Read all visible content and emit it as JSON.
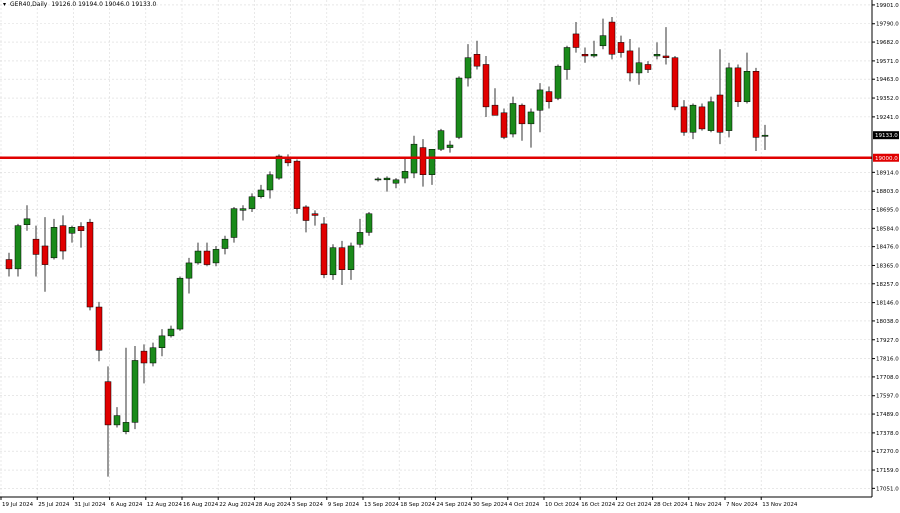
{
  "header": {
    "symbol_timeframe": "GER40,Daily",
    "ohlc": "19126.0 19194.0 19046.0 19133.0"
  },
  "colors": {
    "background": "#ffffff",
    "grid": "#d9d9d9",
    "bull": "#1a8a1a",
    "bear": "#e00000",
    "wick": "#000000",
    "level_line": "#e00000",
    "price_label_bg": "#000000"
  },
  "chart_data": {
    "type": "candlestick",
    "ylim": [
      17000,
      19930
    ],
    "grid": true,
    "y_ticks": [
      "19901.0",
      "19790.0",
      "19682.0",
      "19571.0",
      "19463.0",
      "19352.0",
      "19241.0",
      "18914.0",
      "18803.0",
      "18695.0",
      "18584.0",
      "18476.0",
      "18365.0",
      "18257.0",
      "18146.0",
      "18038.0",
      "17927.0",
      "17816.0",
      "17708.0",
      "17597.0",
      "17489.0",
      "17378.0",
      "17270.0",
      "17159.0",
      "17051.0"
    ],
    "x_ticks": [
      "19 Jul 2024",
      "25 Jul 2024",
      "31 Jul 2024",
      "6 Aug 2024",
      "12 Aug 2024",
      "16 Aug 2024",
      "22 Aug 2024",
      "28 Aug 2024",
      "3 Sep 2024",
      "9 Sep 2024",
      "13 Sep 2024",
      "18 Sep 2024",
      "24 Sep 2024",
      "30 Sep 2024",
      "4 Oct 2024",
      "10 Oct 2024",
      "16 Oct 2024",
      "22 Oct 2024",
      "28 Oct 2024",
      "1 Nov 2024",
      "7 Nov 2024",
      "13 Nov 2024"
    ],
    "current_price": "19133.0",
    "level_price": "19000.0",
    "level_value": 19000,
    "current_value": 19133,
    "candles": [
      {
        "o": 18400,
        "h": 18440,
        "l": 18300,
        "c": 18345
      },
      {
        "o": 18345,
        "h": 18610,
        "l": 18300,
        "c": 18600
      },
      {
        "o": 18605,
        "h": 18720,
        "l": 18570,
        "c": 18640
      },
      {
        "o": 18520,
        "h": 18600,
        "l": 18300,
        "c": 18430
      },
      {
        "o": 18480,
        "h": 18650,
        "l": 18210,
        "c": 18370
      },
      {
        "o": 18410,
        "h": 18640,
        "l": 18400,
        "c": 18590
      },
      {
        "o": 18600,
        "h": 18660,
        "l": 18400,
        "c": 18450
      },
      {
        "o": 18555,
        "h": 18600,
        "l": 18500,
        "c": 18590
      },
      {
        "o": 18595,
        "h": 18620,
        "l": 18470,
        "c": 18570
      },
      {
        "o": 18620,
        "h": 18640,
        "l": 18100,
        "c": 18120
      },
      {
        "o": 18120,
        "h": 18150,
        "l": 17800,
        "c": 17865
      },
      {
        "o": 17680,
        "h": 17770,
        "l": 17120,
        "c": 17425
      },
      {
        "o": 17425,
        "h": 17530,
        "l": 17410,
        "c": 17480
      },
      {
        "o": 17385,
        "h": 17880,
        "l": 17370,
        "c": 17440
      },
      {
        "o": 17440,
        "h": 17890,
        "l": 17400,
        "c": 17805
      },
      {
        "o": 17860,
        "h": 17900,
        "l": 17670,
        "c": 17790
      },
      {
        "o": 17790,
        "h": 17910,
        "l": 17770,
        "c": 17880
      },
      {
        "o": 17880,
        "h": 17990,
        "l": 17830,
        "c": 17950
      },
      {
        "o": 17950,
        "h": 18010,
        "l": 17940,
        "c": 17990
      },
      {
        "o": 17990,
        "h": 18300,
        "l": 17980,
        "c": 18290
      },
      {
        "o": 18290,
        "h": 18410,
        "l": 18200,
        "c": 18380
      },
      {
        "o": 18380,
        "h": 18500,
        "l": 18370,
        "c": 18450
      },
      {
        "o": 18450,
        "h": 18500,
        "l": 18360,
        "c": 18370
      },
      {
        "o": 18380,
        "h": 18480,
        "l": 18360,
        "c": 18460
      },
      {
        "o": 18465,
        "h": 18540,
        "l": 18430,
        "c": 18520
      },
      {
        "o": 18530,
        "h": 18710,
        "l": 18500,
        "c": 18700
      },
      {
        "o": 18690,
        "h": 18720,
        "l": 18630,
        "c": 18700
      },
      {
        "o": 18700,
        "h": 18790,
        "l": 18680,
        "c": 18770
      },
      {
        "o": 18770,
        "h": 18840,
        "l": 18760,
        "c": 18810
      },
      {
        "o": 18810,
        "h": 18920,
        "l": 18760,
        "c": 18900
      },
      {
        "o": 18880,
        "h": 19020,
        "l": 18870,
        "c": 19010
      },
      {
        "o": 18990,
        "h": 19020,
        "l": 18950,
        "c": 18970
      },
      {
        "o": 18980,
        "h": 18990,
        "l": 18670,
        "c": 18700
      },
      {
        "o": 18710,
        "h": 18720,
        "l": 18560,
        "c": 18630
      },
      {
        "o": 18670,
        "h": 18690,
        "l": 18600,
        "c": 18660
      },
      {
        "o": 18610,
        "h": 18650,
        "l": 18290,
        "c": 18310
      },
      {
        "o": 18310,
        "h": 18490,
        "l": 18280,
        "c": 18470
      },
      {
        "o": 18470,
        "h": 18510,
        "l": 18250,
        "c": 18340
      },
      {
        "o": 18340,
        "h": 18500,
        "l": 18280,
        "c": 18480
      },
      {
        "o": 18490,
        "h": 18640,
        "l": 18470,
        "c": 18560
      },
      {
        "o": 18560,
        "h": 18680,
        "l": 18540,
        "c": 18670
      },
      {
        "o": 18870,
        "h": 18885,
        "l": 18860,
        "c": 18875
      },
      {
        "o": 18870,
        "h": 18890,
        "l": 18800,
        "c": 18880
      },
      {
        "o": 18850,
        "h": 18880,
        "l": 18820,
        "c": 18870
      },
      {
        "o": 18880,
        "h": 19000,
        "l": 18850,
        "c": 18920
      },
      {
        "o": 18910,
        "h": 19130,
        "l": 18880,
        "c": 19080
      },
      {
        "o": 19060,
        "h": 19110,
        "l": 18830,
        "c": 18900
      },
      {
        "o": 18900,
        "h": 19050,
        "l": 18840,
        "c": 19050
      },
      {
        "o": 19050,
        "h": 19170,
        "l": 19040,
        "c": 19160
      },
      {
        "o": 19060,
        "h": 19100,
        "l": 19030,
        "c": 19075
      },
      {
        "o": 19120,
        "h": 19480,
        "l": 19110,
        "c": 19470
      },
      {
        "o": 19470,
        "h": 19670,
        "l": 19420,
        "c": 19590
      },
      {
        "o": 19610,
        "h": 19690,
        "l": 19520,
        "c": 19540
      },
      {
        "o": 19550,
        "h": 19600,
        "l": 19240,
        "c": 19300
      },
      {
        "o": 19310,
        "h": 19410,
        "l": 19250,
        "c": 19250
      },
      {
        "o": 19265,
        "h": 19290,
        "l": 19110,
        "c": 19120
      },
      {
        "o": 19140,
        "h": 19360,
        "l": 19120,
        "c": 19320
      },
      {
        "o": 19310,
        "h": 19320,
        "l": 19100,
        "c": 19200
      },
      {
        "o": 19200,
        "h": 19290,
        "l": 19060,
        "c": 19270
      },
      {
        "o": 19280,
        "h": 19440,
        "l": 19150,
        "c": 19400
      },
      {
        "o": 19390,
        "h": 19420,
        "l": 19290,
        "c": 19330
      },
      {
        "o": 19350,
        "h": 19550,
        "l": 19340,
        "c": 19540
      },
      {
        "o": 19520,
        "h": 19660,
        "l": 19460,
        "c": 19650
      },
      {
        "o": 19730,
        "h": 19800,
        "l": 19620,
        "c": 19650
      },
      {
        "o": 19610,
        "h": 19650,
        "l": 19560,
        "c": 19600
      },
      {
        "o": 19600,
        "h": 19690,
        "l": 19590,
        "c": 19610
      },
      {
        "o": 19660,
        "h": 19820,
        "l": 19640,
        "c": 19720
      },
      {
        "o": 19800,
        "h": 19830,
        "l": 19580,
        "c": 19610
      },
      {
        "o": 19680,
        "h": 19720,
        "l": 19590,
        "c": 19620
      },
      {
        "o": 19630,
        "h": 19700,
        "l": 19450,
        "c": 19500
      },
      {
        "o": 19500,
        "h": 19650,
        "l": 19430,
        "c": 19560
      },
      {
        "o": 19550,
        "h": 19570,
        "l": 19500,
        "c": 19520
      },
      {
        "o": 19600,
        "h": 19680,
        "l": 19580,
        "c": 19610
      },
      {
        "o": 19600,
        "h": 19770,
        "l": 19550,
        "c": 19590
      },
      {
        "o": 19590,
        "h": 19600,
        "l": 19280,
        "c": 19300
      },
      {
        "o": 19300,
        "h": 19340,
        "l": 19130,
        "c": 19150
      },
      {
        "o": 19150,
        "h": 19320,
        "l": 19110,
        "c": 19310
      },
      {
        "o": 19300,
        "h": 19320,
        "l": 19160,
        "c": 19170
      },
      {
        "o": 19160,
        "h": 19360,
        "l": 19150,
        "c": 19330
      },
      {
        "o": 19370,
        "h": 19640,
        "l": 19080,
        "c": 19150
      },
      {
        "o": 19160,
        "h": 19560,
        "l": 19120,
        "c": 19530
      },
      {
        "o": 19530,
        "h": 19550,
        "l": 19300,
        "c": 19330
      },
      {
        "o": 19330,
        "h": 19620,
        "l": 19320,
        "c": 19510
      },
      {
        "o": 19510,
        "h": 19530,
        "l": 19040,
        "c": 19120
      },
      {
        "o": 19126,
        "h": 19194,
        "l": 19046,
        "c": 19133
      }
    ]
  }
}
